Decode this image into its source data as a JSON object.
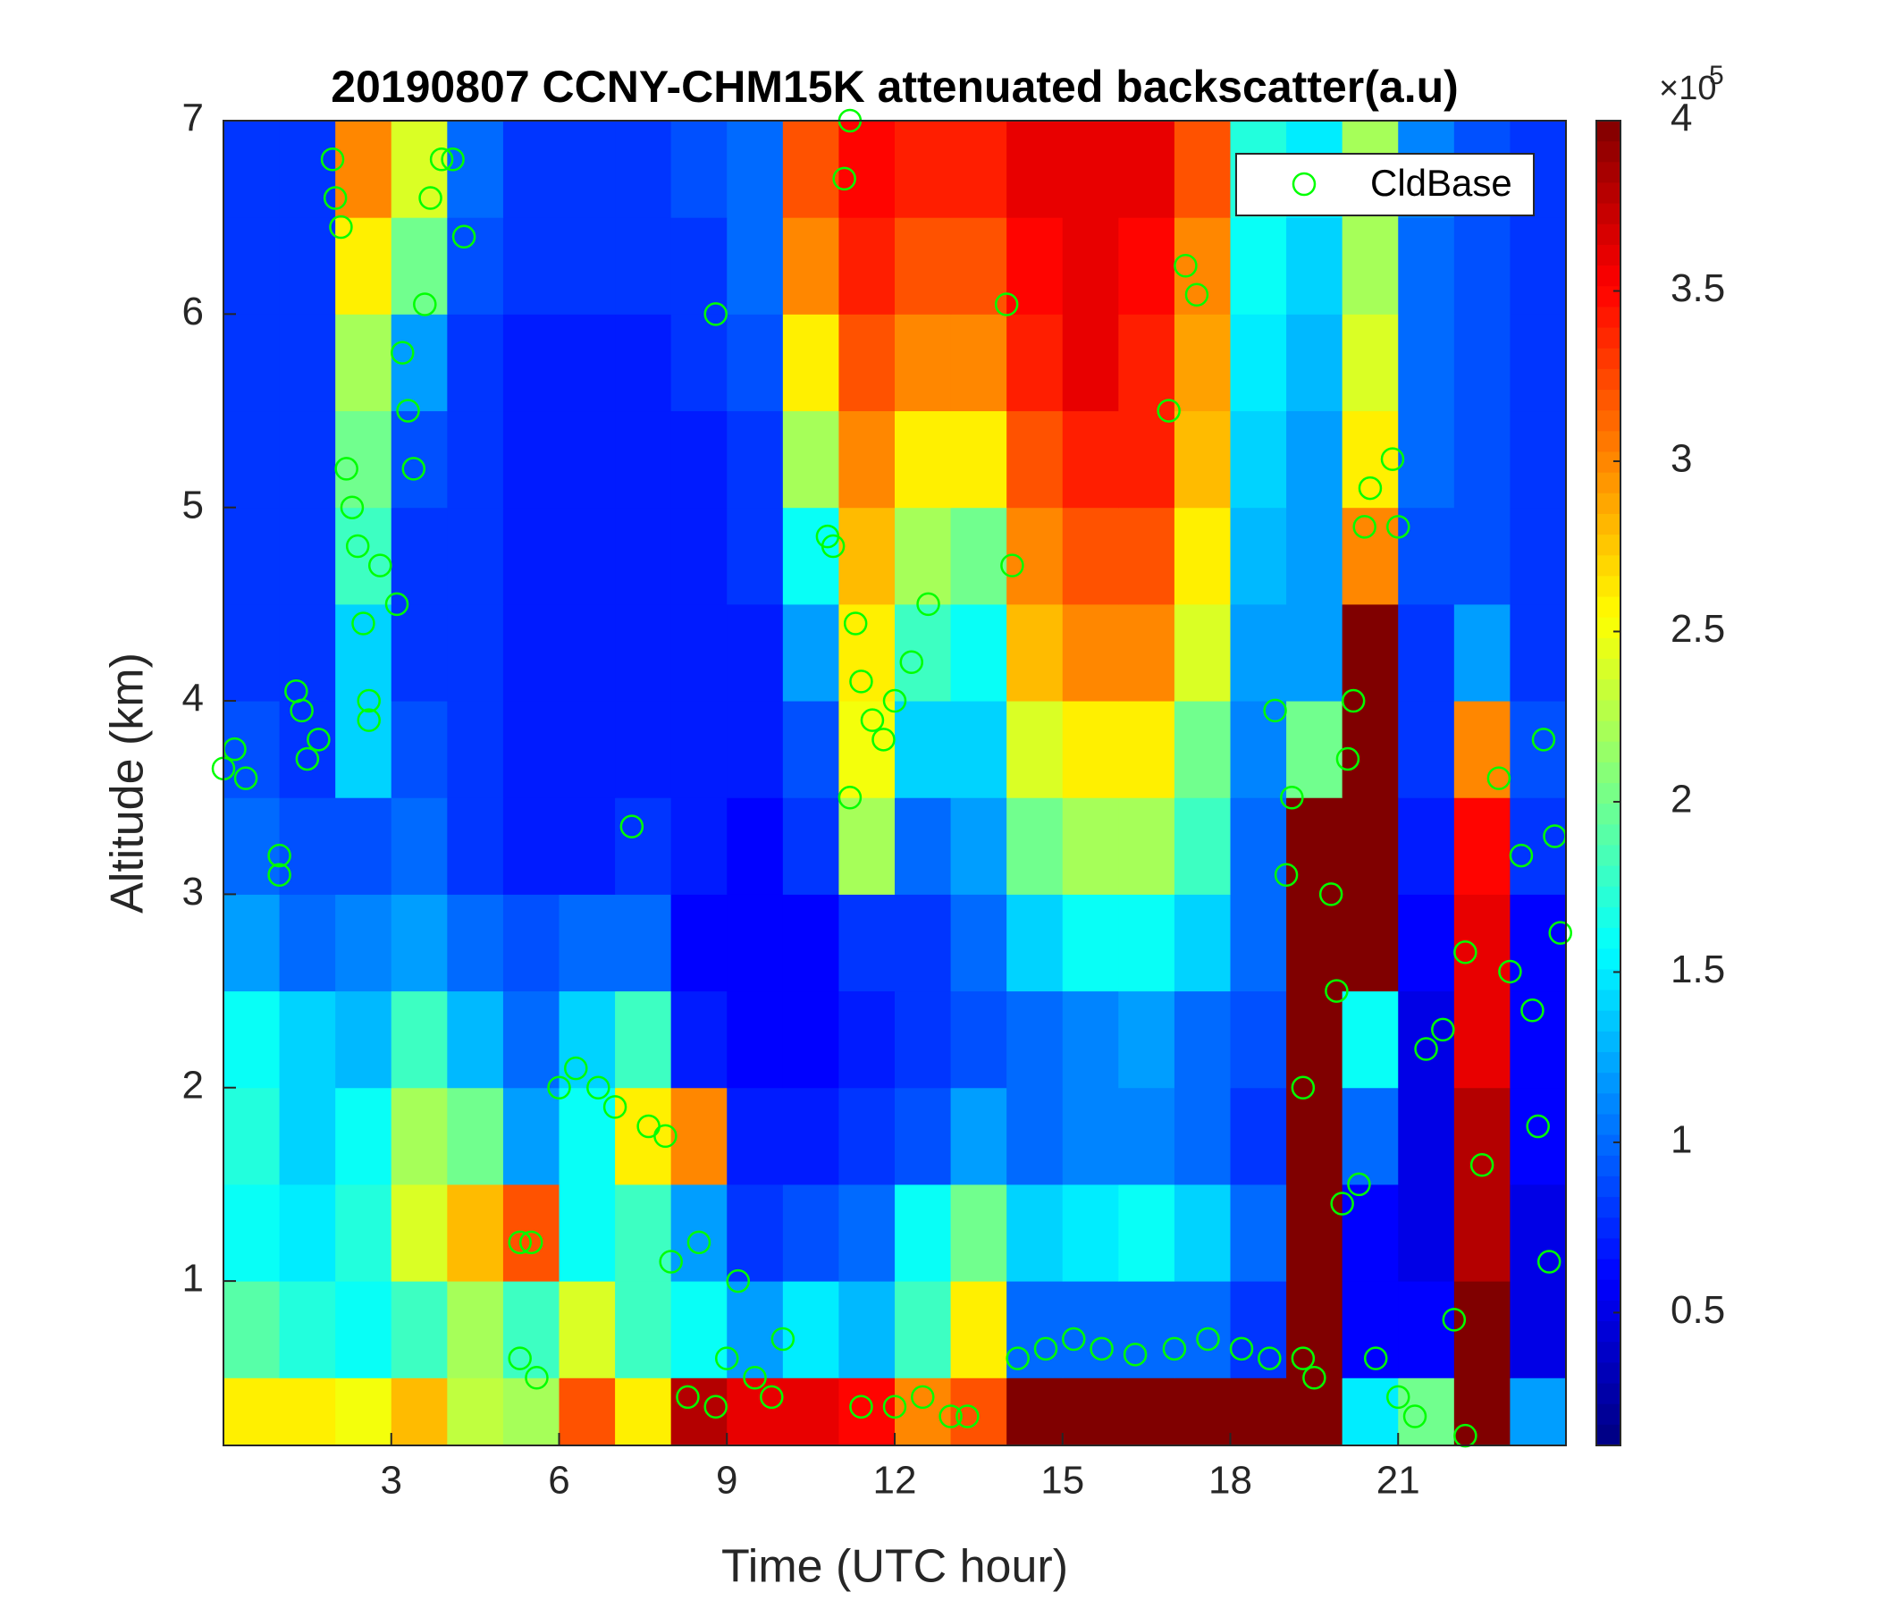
{
  "chart_data": {
    "type": "heatmap",
    "title": "20190807 CCNY-CHM15K attenuated backscatter(a.u)",
    "x_label": "Time (UTC hour)",
    "y_label": "Altitude (km)",
    "xlim": [
      0,
      24
    ],
    "xticks": [
      3,
      6,
      9,
      12,
      15,
      18,
      21
    ],
    "ylim": [
      0.15,
      7
    ],
    "yticks": [
      1,
      2,
      3,
      4,
      5,
      6,
      7
    ],
    "colormap": "jet",
    "clim": [
      0.11,
      4
    ],
    "cticks": [
      0.5,
      1,
      1.5,
      2,
      2.5,
      3,
      3.5,
      4
    ],
    "colorbar_multiplier": "×10",
    "colorbar_exponent": "5",
    "legend": "top-right",
    "x_edges": [
      0,
      1,
      2,
      3,
      4,
      5,
      6,
      7,
      8,
      9,
      10,
      11,
      12,
      13,
      14,
      15,
      16,
      17,
      18,
      19,
      20,
      21,
      22,
      23,
      24
    ],
    "y_edges": [
      0.15,
      0.5,
      1,
      1.5,
      2,
      2.5,
      3,
      3.5,
      4,
      4.5,
      5,
      5.5,
      6,
      6.5,
      7
    ],
    "z": [
      [
        2.6,
        2.6,
        2.5,
        2.8,
        2.3,
        2.2,
        3.2,
        2.6,
        3.8,
        3.6,
        3.6,
        3.5,
        3.0,
        3.2,
        4,
        4,
        4,
        4,
        4,
        4,
        1.5,
        2.0,
        4,
        1.2
      ],
      [
        1.9,
        1.7,
        1.6,
        1.8,
        2.2,
        1.8,
        2.4,
        1.8,
        1.6,
        1.2,
        1.5,
        1.3,
        1.8,
        2.6,
        1.0,
        1.0,
        1.0,
        1.0,
        0.8,
        4,
        0.6,
        0.6,
        4,
        0.5
      ],
      [
        1.6,
        1.5,
        1.7,
        2.4,
        2.8,
        3.2,
        1.6,
        1.8,
        1.2,
        0.8,
        0.9,
        1.0,
        1.6,
        2.0,
        1.4,
        1.5,
        1.6,
        1.4,
        1.0,
        4,
        0.6,
        0.5,
        3.8,
        0.5
      ],
      [
        1.7,
        1.4,
        1.6,
        2.2,
        2.0,
        1.2,
        1.6,
        2.6,
        3.0,
        0.7,
        0.7,
        0.8,
        0.9,
        1.2,
        1.0,
        1.1,
        1.1,
        1.0,
        0.8,
        4,
        1.0,
        0.5,
        3.8,
        0.6
      ],
      [
        1.6,
        1.4,
        1.3,
        1.8,
        1.3,
        1.0,
        1.4,
        1.8,
        0.7,
        0.6,
        0.6,
        0.7,
        0.8,
        0.9,
        1.0,
        1.1,
        1.2,
        1.0,
        0.9,
        4,
        1.6,
        0.5,
        3.6,
        0.6
      ],
      [
        1.2,
        1.0,
        1.1,
        1.2,
        1.0,
        0.9,
        1.0,
        1.0,
        0.6,
        0.6,
        0.6,
        0.8,
        0.8,
        1.0,
        1.4,
        1.6,
        1.6,
        1.4,
        1.0,
        4,
        4,
        0.6,
        3.6,
        0.6
      ],
      [
        1.0,
        0.9,
        0.9,
        1.0,
        0.8,
        0.7,
        0.7,
        0.8,
        0.7,
        0.6,
        0.8,
        2.2,
        1.0,
        1.2,
        2.0,
        2.2,
        2.2,
        1.8,
        1.0,
        4,
        4,
        0.7,
        3.5,
        0.8
      ],
      [
        0.9,
        0.8,
        1.4,
        0.9,
        0.8,
        0.7,
        0.7,
        0.7,
        0.7,
        0.7,
        0.9,
        2.5,
        1.4,
        1.4,
        2.4,
        2.6,
        2.6,
        2.0,
        1.1,
        2.0,
        4,
        0.8,
        3.0,
        0.9
      ],
      [
        0.8,
        0.8,
        1.4,
        0.8,
        0.8,
        0.7,
        0.7,
        0.7,
        0.7,
        0.7,
        1.2,
        2.6,
        1.8,
        1.6,
        2.8,
        3.0,
        3.0,
        2.4,
        1.2,
        1.2,
        4,
        0.8,
        1.2,
        0.8
      ],
      [
        0.8,
        0.8,
        1.8,
        0.8,
        0.8,
        0.7,
        0.7,
        0.7,
        0.7,
        0.8,
        1.6,
        2.8,
        2.2,
        2.0,
        3.0,
        3.2,
        3.2,
        2.6,
        1.3,
        1.2,
        3.0,
        0.9,
        0.9,
        0.8
      ],
      [
        0.8,
        0.8,
        2.0,
        0.9,
        0.8,
        0.7,
        0.7,
        0.7,
        0.7,
        0.8,
        2.2,
        3.0,
        2.6,
        2.6,
        3.2,
        3.4,
        3.4,
        2.8,
        1.4,
        1.2,
        2.6,
        1.0,
        0.9,
        0.8
      ],
      [
        0.8,
        0.8,
        2.2,
        1.2,
        0.8,
        0.7,
        0.7,
        0.7,
        0.8,
        0.9,
        2.6,
        3.2,
        3.0,
        3.0,
        3.4,
        3.6,
        3.4,
        2.9,
        1.5,
        1.3,
        2.4,
        1.0,
        0.9,
        0.8
      ],
      [
        0.8,
        0.8,
        2.6,
        2.0,
        0.9,
        0.8,
        0.8,
        0.8,
        0.8,
        1.0,
        3.0,
        3.4,
        3.2,
        3.2,
        3.5,
        3.6,
        3.5,
        3.0,
        1.6,
        1.4,
        2.2,
        1.0,
        0.9,
        0.8
      ],
      [
        0.8,
        0.8,
        3.0,
        2.4,
        1.0,
        0.8,
        0.8,
        0.8,
        0.9,
        1.0,
        3.2,
        3.5,
        3.4,
        3.4,
        3.6,
        3.6,
        3.6,
        3.2,
        1.7,
        1.5,
        2.2,
        1.1,
        0.9,
        0.8
      ]
    ],
    "series": [
      {
        "type": "scatter",
        "name": "CldBase",
        "color": "#00ff00",
        "x": [
          0.0,
          0.2,
          0.4,
          1.0,
          1.0,
          1.3,
          1.4,
          1.5,
          1.7,
          1.95,
          2.0,
          2.1,
          2.2,
          2.3,
          2.4,
          2.5,
          2.6,
          2.6,
          2.8,
          3.1,
          3.2,
          3.3,
          3.4,
          3.6,
          3.7,
          3.9,
          4.1,
          4.3,
          5.3,
          5.5,
          5.3,
          5.6,
          6.0,
          6.3,
          6.7,
          7.0,
          7.3,
          7.6,
          7.9,
          8.0,
          8.3,
          8.5,
          8.8,
          8.8,
          9.0,
          9.2,
          9.5,
          9.8,
          10.0,
          10.8,
          10.9,
          11.2,
          11.1,
          11.3,
          11.2,
          11.4,
          11.6,
          11.8,
          12.0,
          12.3,
          12.6,
          11.4,
          12.0,
          12.5,
          13.0,
          13.3,
          14.0,
          14.1,
          14.2,
          14.7,
          15.2,
          15.7,
          16.3,
          16.9,
          17.2,
          17.4,
          17.0,
          17.6,
          18.2,
          18.7,
          18.8,
          19.0,
          19.1,
          19.3,
          19.3,
          19.5,
          19.8,
          19.9,
          20.0,
          20.1,
          20.2,
          20.3,
          20.4,
          20.5,
          20.9,
          21.0,
          20.6,
          21.0,
          21.3,
          21.5,
          21.8,
          22.0,
          22.2,
          22.2,
          22.5,
          22.8,
          23.0,
          23.2,
          23.4,
          23.5,
          23.6,
          23.7,
          23.9,
          23.8
        ],
        "y": [
          3.65,
          3.75,
          3.6,
          3.1,
          3.2,
          4.05,
          3.95,
          3.7,
          3.8,
          6.8,
          6.6,
          6.45,
          5.2,
          5.0,
          4.8,
          4.4,
          4.0,
          3.9,
          4.7,
          4.5,
          5.8,
          5.5,
          5.2,
          6.05,
          6.6,
          6.8,
          6.8,
          6.4,
          1.2,
          1.2,
          0.6,
          0.5,
          2.0,
          2.1,
          2.0,
          1.9,
          3.35,
          1.8,
          1.75,
          1.1,
          0.4,
          1.2,
          6.0,
          0.35,
          0.6,
          1.0,
          0.5,
          0.4,
          0.7,
          4.85,
          4.8,
          7.0,
          6.7,
          4.4,
          3.5,
          4.1,
          3.9,
          3.8,
          4.0,
          4.2,
          4.5,
          0.35,
          0.35,
          0.4,
          0.3,
          0.3,
          6.05,
          4.7,
          0.6,
          0.65,
          0.7,
          0.65,
          0.62,
          5.5,
          6.25,
          6.1,
          0.65,
          0.7,
          0.65,
          0.6,
          3.95,
          3.1,
          3.5,
          2.0,
          0.6,
          0.5,
          3.0,
          2.5,
          1.4,
          3.7,
          4.0,
          1.5,
          4.9,
          5.1,
          5.25,
          4.9,
          0.6,
          0.4,
          0.3,
          2.2,
          2.3,
          0.8,
          0.2,
          2.7,
          1.6,
          3.6,
          2.6,
          3.2,
          2.4,
          1.8,
          3.8,
          1.1,
          2.8,
          3.3
        ]
      }
    ]
  }
}
